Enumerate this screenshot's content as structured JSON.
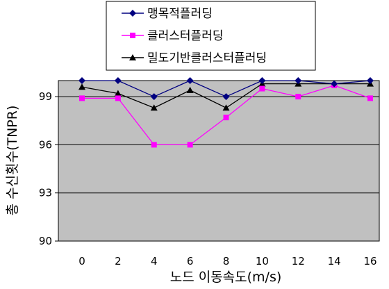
{
  "chart_data": {
    "type": "line",
    "x": [
      0,
      2,
      4,
      6,
      8,
      10,
      12,
      14,
      16
    ],
    "xlabel": "노드 이동속도(m/s)",
    "ylabel": "총 수신횟수(TNPR)",
    "ylim": [
      90,
      100
    ],
    "yticks": [
      90,
      93,
      96,
      99
    ],
    "grid": true,
    "legend": "top-center",
    "plot_background": "#c0c0c0",
    "series": [
      {
        "name": "맹목적플러딩",
        "marker": "diamond",
        "color": "#000080",
        "values": [
          100,
          100,
          99,
          100,
          99,
          100,
          100,
          99.8,
          100
        ]
      },
      {
        "name": "클러스터플러딩",
        "marker": "square",
        "color": "#ff00ff",
        "values": [
          98.9,
          98.9,
          96,
          96,
          97.7,
          99.5,
          99,
          99.7,
          98.9
        ]
      },
      {
        "name": "밀도기반클러스터플러딩",
        "marker": "triangle",
        "color": "#000000",
        "values": [
          99.6,
          99.2,
          98.3,
          99.4,
          98.3,
          99.8,
          99.8,
          99.8,
          99.8
        ]
      }
    ]
  }
}
